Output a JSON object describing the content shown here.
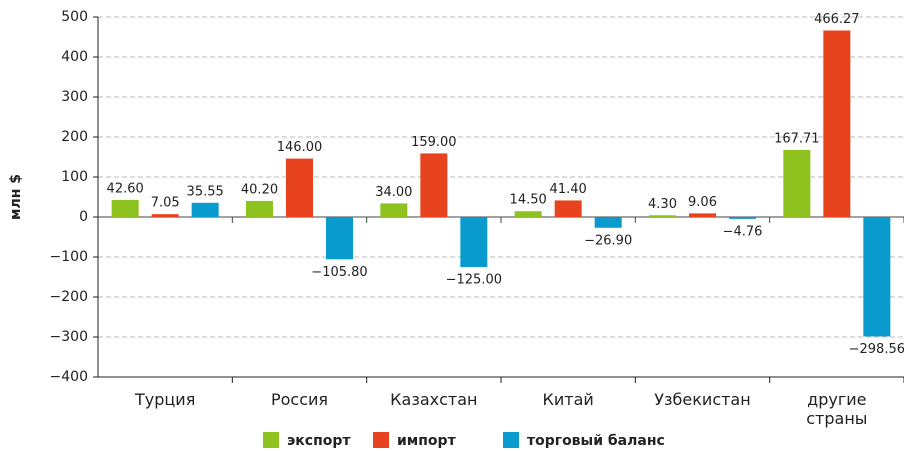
{
  "chart_data": {
    "type": "bar",
    "y_label": "млн $",
    "categories": [
      "Турция",
      "Россия",
      "Казахстан",
      "Китай",
      "Узбекистан",
      "другие\nстраны"
    ],
    "series": [
      {
        "name": "экспорт",
        "color": "#8dc21f",
        "values": [
          42.6,
          40.2,
          34.0,
          14.5,
          4.3,
          167.71
        ],
        "value_labels": [
          "42.60",
          "40.20",
          "34.00",
          "14.50",
          "4.30",
          "167.71"
        ]
      },
      {
        "name": "импорт",
        "color": "#e8431f",
        "values": [
          7.05,
          146.0,
          159.0,
          41.4,
          9.06,
          466.27
        ],
        "value_labels": [
          "7.05",
          "146.00",
          "159.00",
          "41.40",
          "9.06",
          "466.27"
        ]
      },
      {
        "name": "торговый баланс",
        "color": "#0a9bce",
        "values": [
          35.55,
          -105.8,
          -125.0,
          -26.9,
          -4.76,
          -298.56
        ],
        "value_labels": [
          "35.55",
          "−105.80",
          "−125.00",
          "−26.90",
          "−4.76",
          "−298.56"
        ]
      }
    ],
    "ylim": [
      -400,
      500
    ],
    "yticks": [
      {
        "value": -400,
        "label": "−400"
      },
      {
        "value": -300,
        "label": "−300"
      },
      {
        "value": -200,
        "label": "−200"
      },
      {
        "value": -100,
        "label": "−100"
      },
      0,
      100,
      200,
      300,
      400,
      500
    ],
    "grid": true,
    "legend": "bottom"
  }
}
